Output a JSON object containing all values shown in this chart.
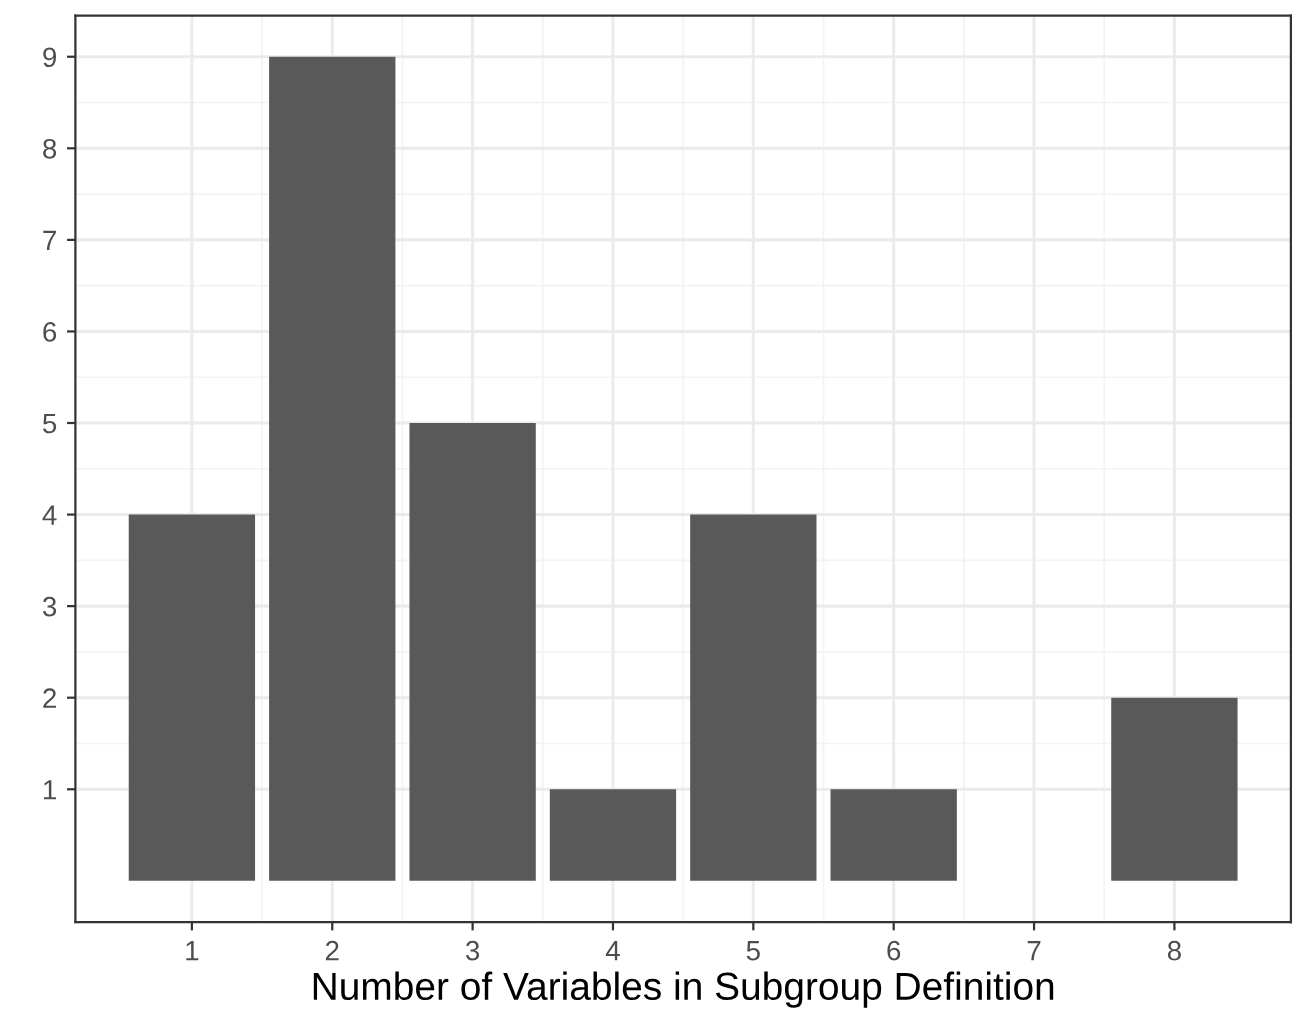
{
  "chart_data": {
    "type": "bar",
    "xlabel": "Number of Variables in Subgroup Definition",
    "x": [
      1,
      2,
      3,
      4,
      5,
      6,
      7,
      8
    ],
    "values": [
      4,
      9,
      5,
      1,
      4,
      1,
      0,
      2
    ],
    "color": "#595959",
    "xlim": [
      0.17,
      8.83
    ],
    "xticks": [
      1,
      2,
      3,
      4,
      5,
      6,
      7,
      8
    ],
    "ylim": [
      -0.45,
      9.45
    ],
    "yticks": [
      1,
      2,
      3,
      4,
      5,
      6,
      7,
      8,
      9
    ],
    "grid": true
  }
}
